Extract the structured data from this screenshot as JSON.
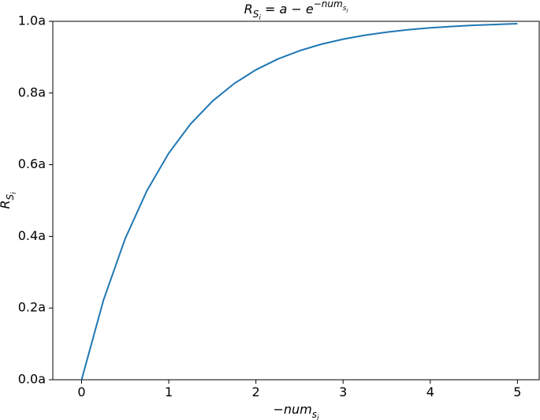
{
  "chart_data": {
    "type": "line",
    "title": [
      "R",
      "S",
      "i",
      " = a − e",
      "−num",
      "s",
      "i"
    ],
    "xlabel": [
      "−num",
      "s",
      "i"
    ],
    "ylabel": [
      "R",
      "S",
      "i"
    ],
    "x": [
      0,
      0.25,
      0.5,
      0.75,
      1,
      1.25,
      1.5,
      1.75,
      2,
      2.25,
      2.5,
      2.75,
      3,
      3.25,
      3.5,
      3.75,
      4,
      4.25,
      4.5,
      4.75,
      5
    ],
    "series": [
      {
        "color": "#1f77b4",
        "values": [
          0,
          0.2212,
          0.3935,
          0.5276,
          0.6321,
          0.7135,
          0.7769,
          0.8262,
          0.8647,
          0.8946,
          0.9179,
          0.9361,
          0.9502,
          0.9612,
          0.9698,
          0.9765,
          0.9817,
          0.9857,
          0.9889,
          0.9913,
          0.9933
        ]
      }
    ],
    "xlim": [
      -0.33,
      5.25
    ],
    "ylim": [
      0,
      1
    ],
    "xticks": [
      0,
      1,
      2,
      3,
      4,
      5
    ],
    "yticks": [
      {
        "value": 0,
        "label": "0.0a"
      },
      {
        "value": 0.2,
        "label": "0.2a"
      },
      {
        "value": 0.4,
        "label": "0.4a"
      },
      {
        "value": 0.6,
        "label": "0.6a"
      },
      {
        "value": 0.8,
        "label": "0.8a"
      },
      {
        "value": 1,
        "label": "1.0a"
      }
    ]
  }
}
